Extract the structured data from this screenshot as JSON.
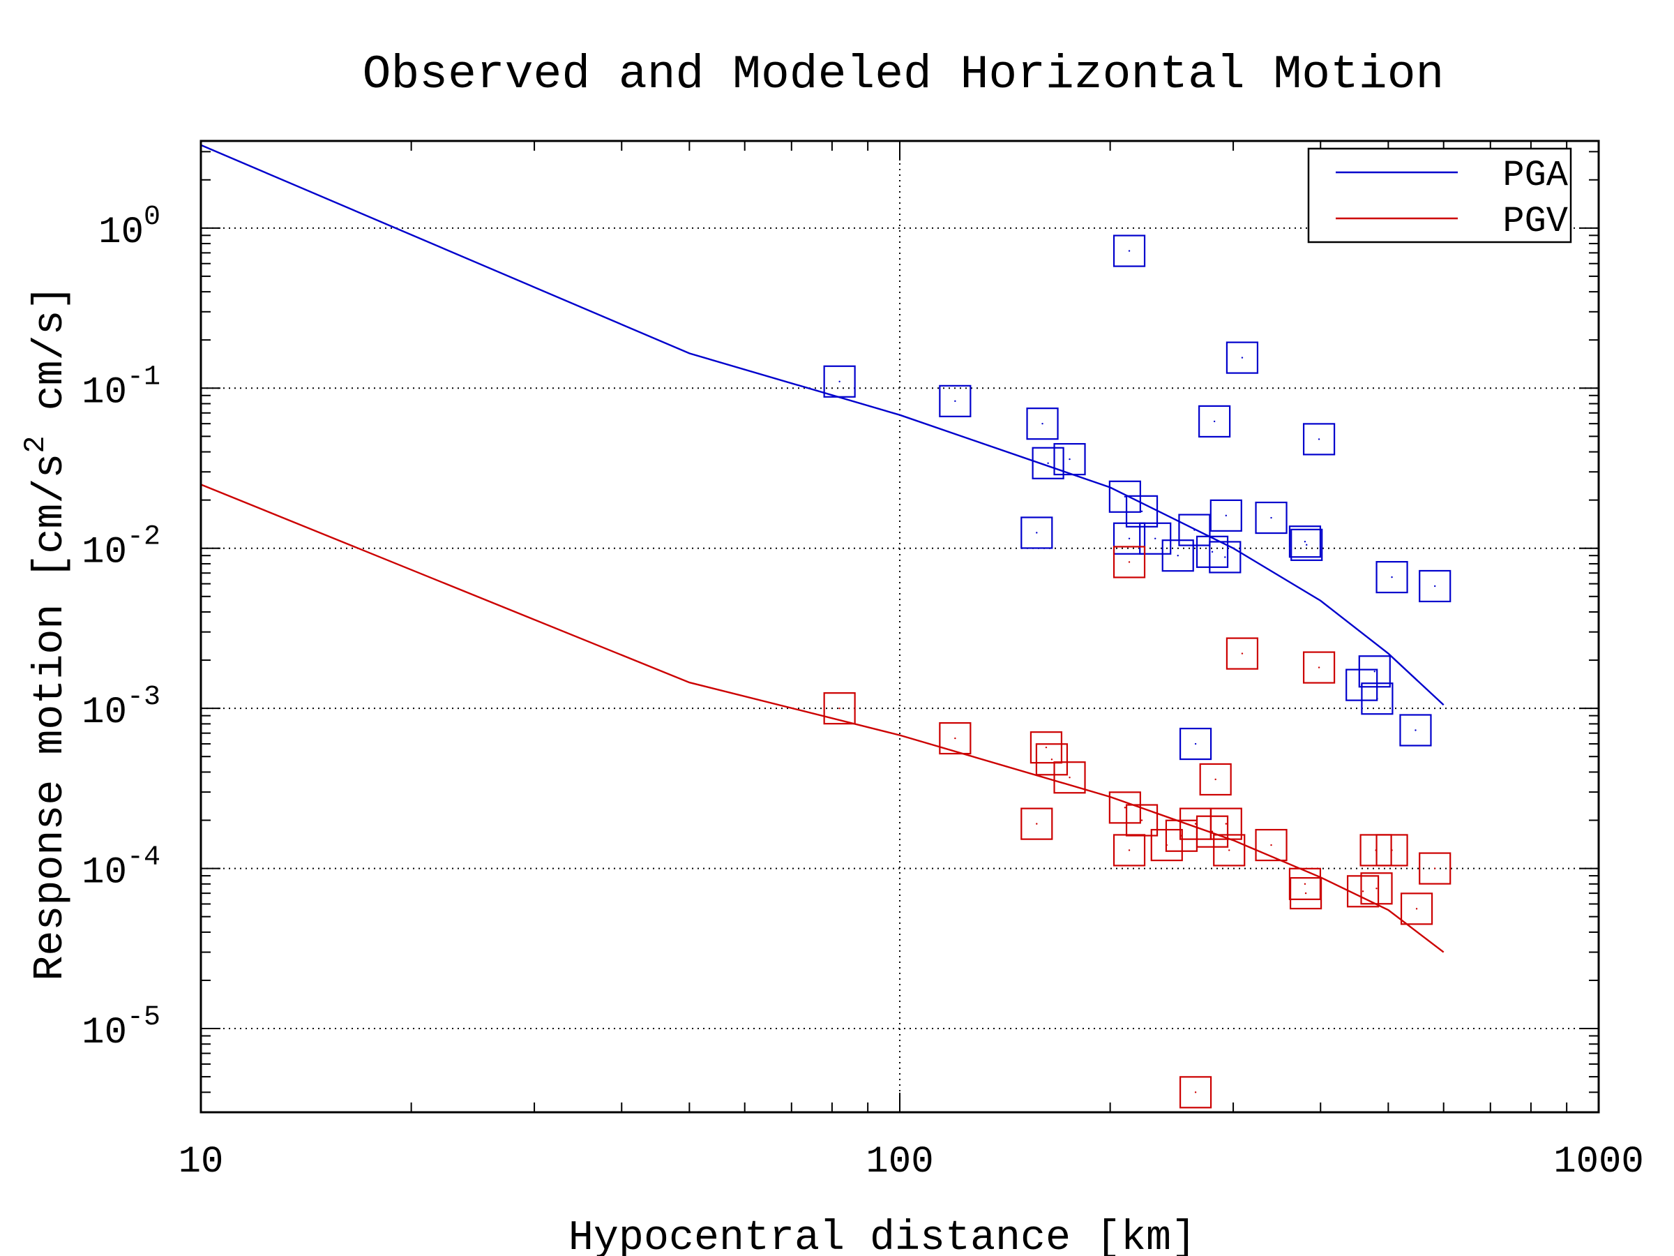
{
  "chart_data": {
    "type": "scatter",
    "title": "Observed and Modeled Horizontal Motion",
    "xlabel": "Hypocentral distance [km]",
    "ylabel_prefix": "Response motion [cm/s",
    "ylabel_sup": "2",
    "ylabel_suffix": " cm/s]",
    "x_scale": "log",
    "y_scale": "log",
    "xlim": [
      10,
      1000
    ],
    "ylim": [
      3e-06,
      3.5
    ],
    "x_ticks": [
      {
        "value": 10,
        "label": "10"
      },
      {
        "value": 100,
        "label": "100"
      },
      {
        "value": 1000,
        "label": "1000"
      }
    ],
    "y_ticks": [
      {
        "value": 1,
        "base": "10",
        "exp": "0"
      },
      {
        "value": 0.1,
        "base": "10",
        "exp": "-1"
      },
      {
        "value": 0.01,
        "base": "10",
        "exp": "-2"
      },
      {
        "value": 0.001,
        "base": "10",
        "exp": "-3"
      },
      {
        "value": 0.0001,
        "base": "10",
        "exp": "-4"
      },
      {
        "value": 1e-05,
        "base": "10",
        "exp": "-5"
      }
    ],
    "grid": {
      "x_major": true,
      "y_major": true,
      "style": "dotted"
    },
    "legend_position": "top-right",
    "series": [
      {
        "name": "PGA",
        "color": "#0000cc",
        "model": [
          [
            10,
            3.3
          ],
          [
            50,
            0.165
          ],
          [
            100,
            0.068
          ],
          [
            200,
            0.024
          ],
          [
            300,
            0.01
          ],
          [
            400,
            0.0047
          ],
          [
            500,
            0.0022
          ],
          [
            600,
            0.00105
          ]
        ],
        "observed": [
          [
            82,
            0.11
          ],
          [
            120,
            0.083
          ],
          [
            160,
            0.06
          ],
          [
            163,
            0.034
          ],
          [
            175,
            0.036
          ],
          [
            157,
            0.0125
          ],
          [
            213,
            0.72
          ],
          [
            309,
            0.155
          ],
          [
            282,
            0.062
          ],
          [
            398,
            0.048
          ],
          [
            210,
            0.021
          ],
          [
            222,
            0.017
          ],
          [
            213,
            0.0115
          ],
          [
            232,
            0.0115
          ],
          [
            250,
            0.009
          ],
          [
            264,
            0.013
          ],
          [
            280,
            0.0095
          ],
          [
            293,
            0.016
          ],
          [
            292,
            0.0088
          ],
          [
            340,
            0.0155
          ],
          [
            380,
            0.011
          ],
          [
            382,
            0.0105
          ],
          [
            506,
            0.0066
          ],
          [
            583,
            0.0058
          ],
          [
            458,
            0.0014
          ],
          [
            478,
            0.0017
          ],
          [
            482,
            0.00115
          ],
          [
            547,
            0.00073
          ],
          [
            265,
            0.0006
          ]
        ]
      },
      {
        "name": "PGV",
        "color": "#cc0000",
        "model": [
          [
            10,
            0.025
          ],
          [
            50,
            0.00145
          ],
          [
            100,
            0.00068
          ],
          [
            200,
            0.00028
          ],
          [
            300,
            0.00015
          ],
          [
            400,
            8.8e-05
          ],
          [
            500,
            5.5e-05
          ],
          [
            600,
            3e-05
          ]
        ],
        "observed": [
          [
            82,
            0.001
          ],
          [
            120,
            0.00065
          ],
          [
            162,
            0.00057
          ],
          [
            165,
            0.00048
          ],
          [
            175,
            0.00037
          ],
          [
            157,
            0.00019
          ],
          [
            210,
            0.00024
          ],
          [
            222,
            0.0002
          ],
          [
            213,
            0.00013
          ],
          [
            241,
            0.00014
          ],
          [
            253,
            0.00016
          ],
          [
            265,
            0.00019
          ],
          [
            280,
            0.00017
          ],
          [
            283,
            0.00036
          ],
          [
            293,
            0.00019
          ],
          [
            296,
            0.00013
          ],
          [
            340,
            0.00014
          ],
          [
            380,
            8e-05
          ],
          [
            381,
            7e-05
          ],
          [
            460,
            7.2e-05
          ],
          [
            481,
            7.5e-05
          ],
          [
            480,
            0.00013
          ],
          [
            506,
            0.00013
          ],
          [
            549,
            5.6e-05
          ],
          [
            583,
            0.0001
          ],
          [
            213,
            0.0082
          ],
          [
            309,
            0.0022
          ],
          [
            398,
            0.0018
          ],
          [
            265,
            4e-06
          ]
        ]
      }
    ]
  }
}
